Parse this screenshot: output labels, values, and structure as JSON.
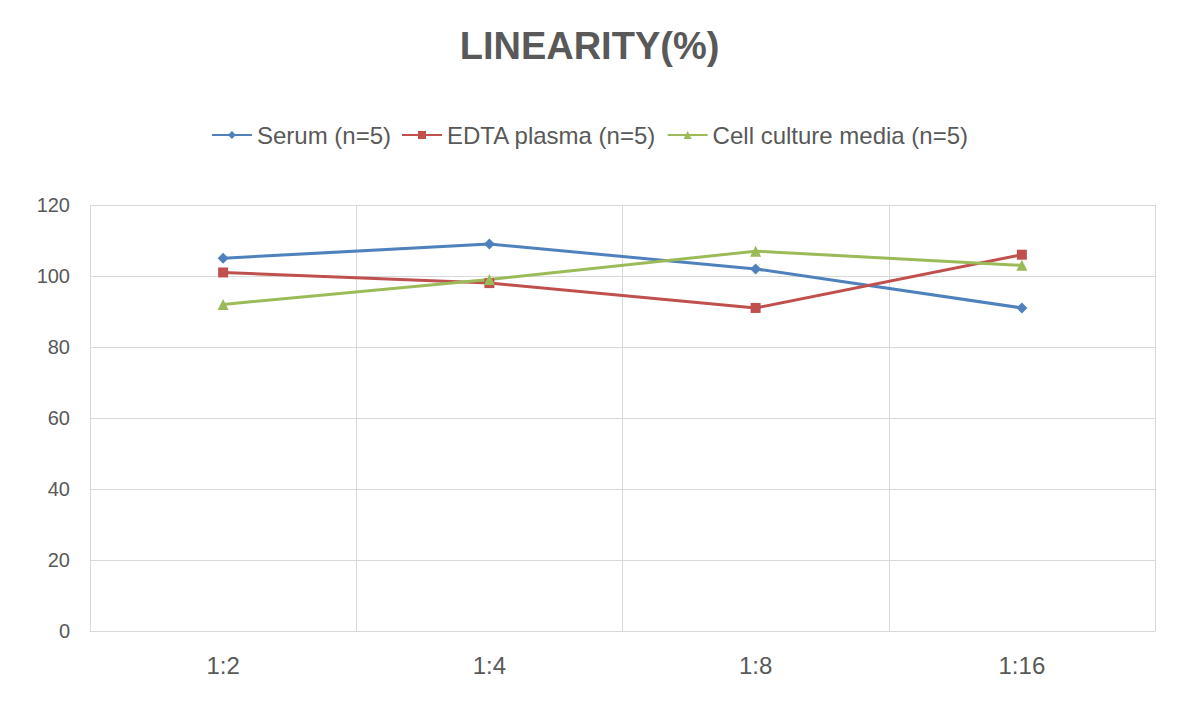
{
  "chart_data": {
    "type": "line",
    "title": "LINEARITY(%)",
    "categories": [
      "1:2",
      "1:4",
      "1:8",
      "1:16"
    ],
    "series": [
      {
        "name": "Serum (n=5)",
        "color": "#4f81bd",
        "marker": "diamond",
        "values": [
          105,
          109,
          102,
          91
        ]
      },
      {
        "name": "EDTA plasma (n=5)",
        "color": "#c0504d",
        "marker": "square",
        "values": [
          101,
          98,
          91,
          106
        ]
      },
      {
        "name": "Cell culture media (n=5)",
        "color": "#9bbb59",
        "marker": "triangle",
        "values": [
          92,
          99,
          107,
          103
        ]
      }
    ],
    "ylim": [
      0,
      120
    ],
    "yticks": [
      0,
      20,
      40,
      60,
      80,
      100,
      120
    ],
    "grid": true,
    "legend": "top"
  }
}
